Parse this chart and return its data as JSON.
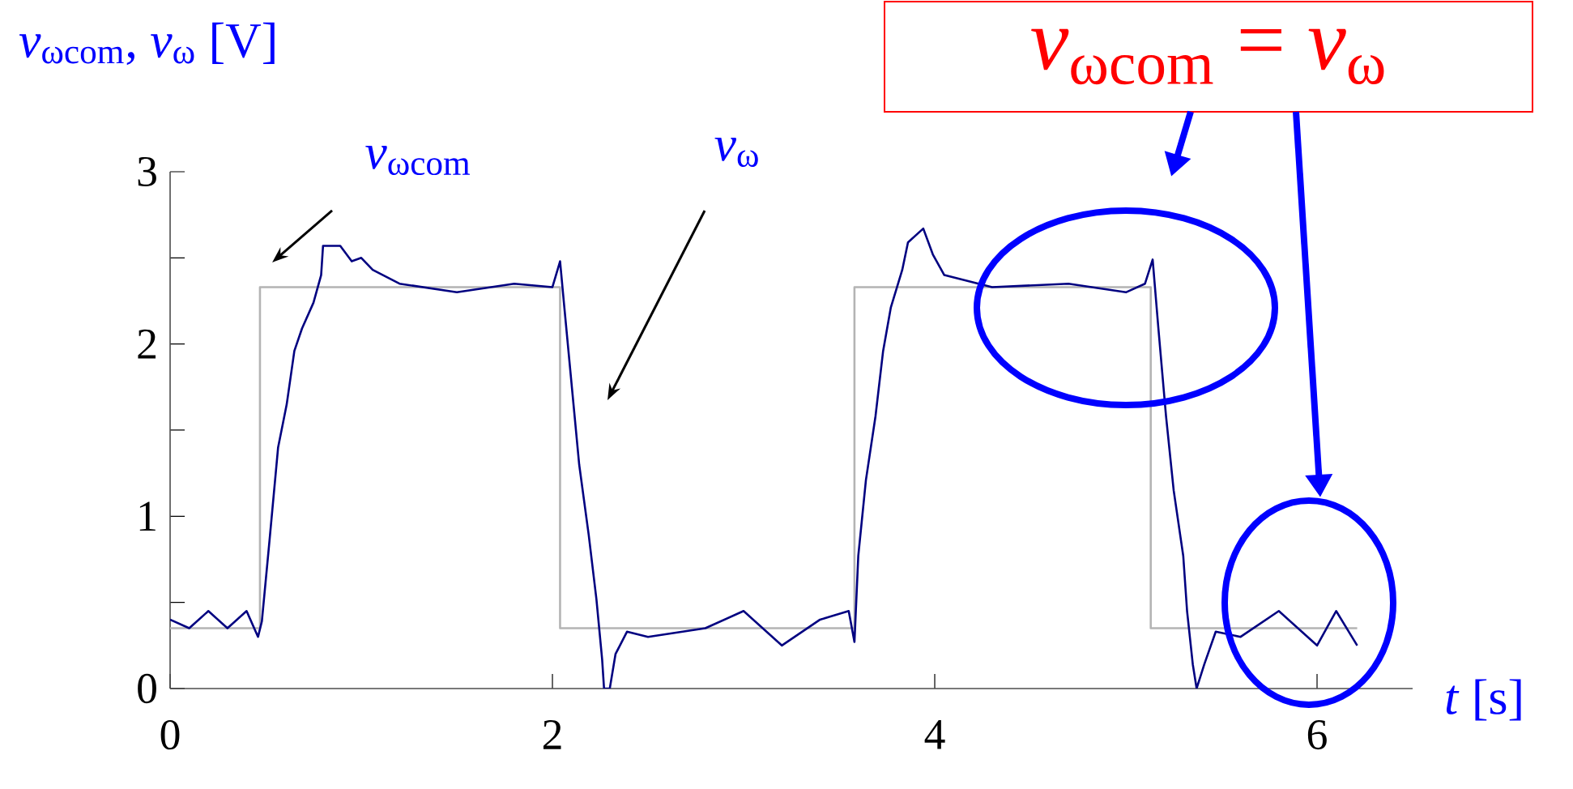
{
  "chart_data": {
    "type": "line",
    "xlabel": "*t* [s]",
    "ylabel": "*v*$_{ωcom}$, *v*$_{ω}$ [V]",
    "xlim": [
      0,
      6.5
    ],
    "ylim": [
      0,
      3
    ],
    "xticks": [
      0,
      2,
      4,
      6
    ],
    "yticks": [
      0,
      {
        "value": 0.5,
        "label": null
      },
      1,
      {
        "value": 1.5,
        "label": null
      },
      2,
      {
        "value": 2.5,
        "label": null
      },
      3
    ],
    "annotations": [
      "*v*$_{ωcom}$",
      "*v*$_{ω}$",
      "*v*$_{ωcom}$ = *v*$_{ω}$"
    ],
    "series": [
      {
        "color": "#b4b4b4",
        "x": [
          0,
          0.47,
          0.47,
          2.04,
          2.04,
          3.58,
          3.58,
          5.13,
          5.13,
          6.21
        ],
        "values": [
          0.35,
          0.35,
          2.33,
          2.33,
          0.35,
          0.35,
          2.33,
          2.33,
          0.35,
          0.35
        ]
      },
      {
        "color": "#000080",
        "x": [
          0,
          0.1,
          0.2,
          0.3,
          0.4,
          0.46,
          0.48,
          0.52,
          0.565,
          0.61,
          0.65,
          0.69,
          0.75,
          0.79,
          0.8,
          0.89,
          0.95,
          1.0,
          1.06,
          1.2,
          1.5,
          1.8,
          2.0,
          2.04,
          2.06,
          2.1,
          2.14,
          2.19,
          2.23,
          2.26,
          2.27,
          2.3,
          2.33,
          2.39,
          2.5,
          2.8,
          3.0,
          3.2,
          3.4,
          3.55,
          3.58,
          3.6,
          3.64,
          3.69,
          3.73,
          3.77,
          3.83,
          3.86,
          3.94,
          3.99,
          4.05,
          4.3,
          4.7,
          5.0,
          5.1,
          5.14,
          5.17,
          5.21,
          5.25,
          5.3,
          5.32,
          5.35,
          5.37,
          5.41,
          5.47,
          5.6,
          5.8,
          6.0,
          6.1,
          6.21
        ],
        "values": [
          0.4,
          0.35,
          0.45,
          0.35,
          0.45,
          0.3,
          0.39,
          0.86,
          1.4,
          1.65,
          1.96,
          2.09,
          2.24,
          2.4,
          2.57,
          2.57,
          2.48,
          2.5,
          2.43,
          2.35,
          2.3,
          2.35,
          2.33,
          2.48,
          2.24,
          1.77,
          1.3,
          0.89,
          0.52,
          0.17,
          0,
          0,
          0.2,
          0.33,
          0.3,
          0.35,
          0.45,
          0.25,
          0.4,
          0.45,
          0.27,
          0.77,
          1.21,
          1.58,
          1.96,
          2.21,
          2.43,
          2.59,
          2.67,
          2.52,
          2.4,
          2.33,
          2.35,
          2.3,
          2.35,
          2.49,
          2.09,
          1.58,
          1.15,
          0.77,
          0.45,
          0.14,
          0,
          0.14,
          0.33,
          0.3,
          0.45,
          0.25,
          0.45,
          0.25
        ]
      }
    ]
  }
}
